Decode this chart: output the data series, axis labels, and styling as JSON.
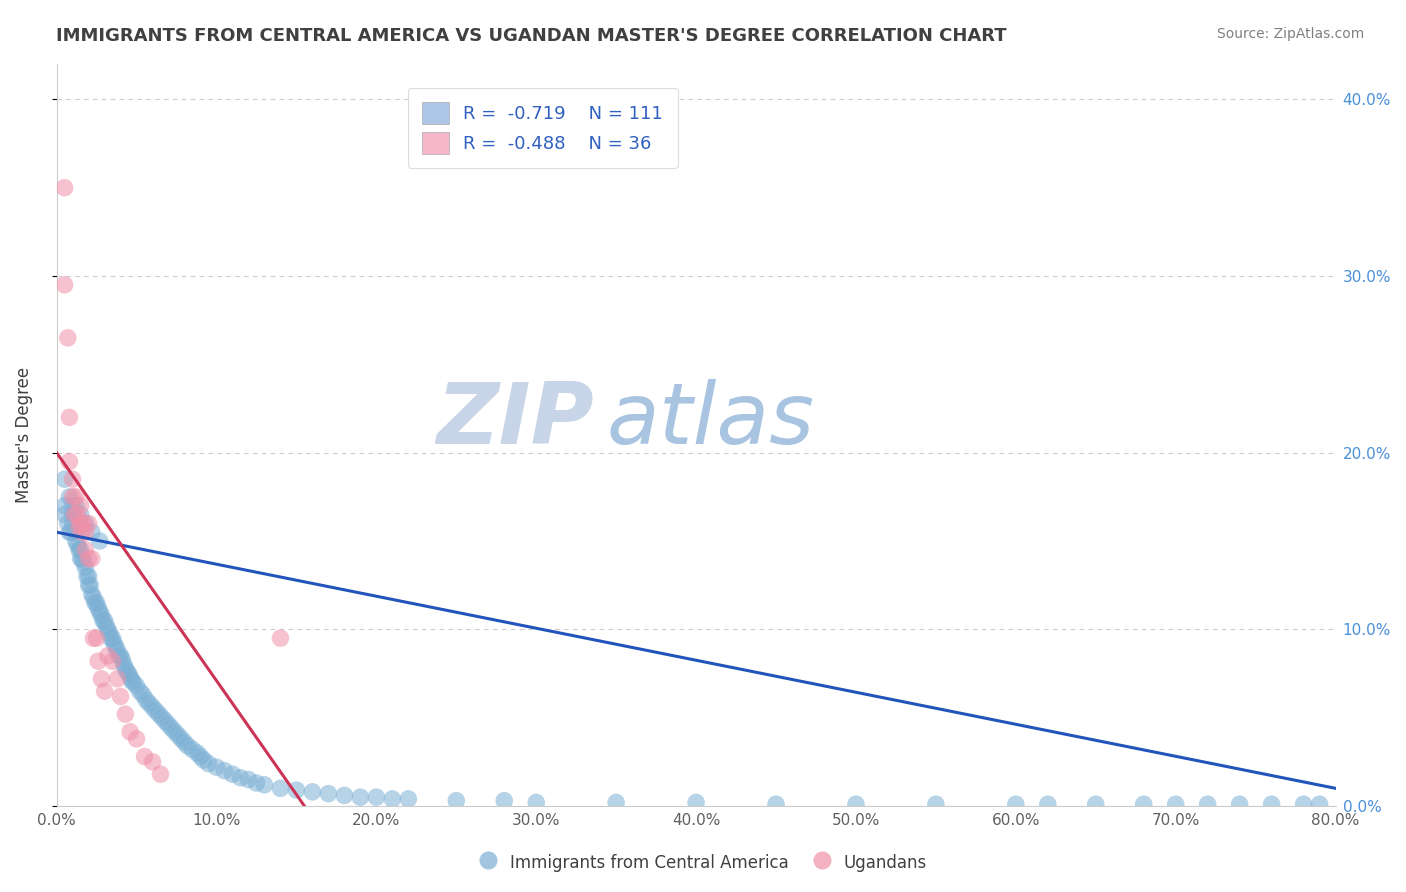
{
  "title": "IMMIGRANTS FROM CENTRAL AMERICA VS UGANDAN MASTER'S DEGREE CORRELATION CHART",
  "source": "Source: ZipAtlas.com",
  "ylabel": "Master's Degree",
  "watermark_zip": "ZIP",
  "watermark_atlas": "atlas",
  "xlim": [
    0.0,
    0.8
  ],
  "ylim": [
    0.0,
    0.42
  ],
  "xticks": [
    0.0,
    0.1,
    0.2,
    0.3,
    0.4,
    0.5,
    0.6,
    0.7,
    0.8
  ],
  "yticks": [
    0.0,
    0.1,
    0.2,
    0.3,
    0.4
  ],
  "ytick_labels_right": [
    "0.0%",
    "10.0%",
    "20.0%",
    "30.0%",
    "40.0%"
  ],
  "xtick_labels": [
    "0.0%",
    "10.0%",
    "20.0%",
    "30.0%",
    "40.0%",
    "50.0%",
    "60.0%",
    "70.0%",
    "80.0%"
  ],
  "legend_label_blue": "R =  -0.719    N = 111",
  "legend_label_pink": "R =  -0.488    N = 36",
  "legend_color_blue": "#aec6e8",
  "legend_color_pink": "#f4b8c8",
  "blue_color": "#7bafd4",
  "pink_color": "#f090a8",
  "blue_line_color": "#2255bb",
  "pink_line_color": "#cc3355",
  "grid_color": "#cccccc",
  "background_color": "#ffffff",
  "title_color": "#404040",
  "source_color": "#808080",
  "watermark_zip_color": "#c8d4e8",
  "watermark_atlas_color": "#a8c4e0",
  "blue_scatter_x": [
    0.005,
    0.005,
    0.007,
    0.008,
    0.009,
    0.01,
    0.01,
    0.01,
    0.012,
    0.012,
    0.013,
    0.014,
    0.015,
    0.015,
    0.016,
    0.017,
    0.018,
    0.019,
    0.02,
    0.02,
    0.021,
    0.022,
    0.023,
    0.024,
    0.025,
    0.026,
    0.027,
    0.028,
    0.029,
    0.03,
    0.031,
    0.032,
    0.033,
    0.034,
    0.035,
    0.036,
    0.037,
    0.038,
    0.039,
    0.04,
    0.041,
    0.042,
    0.043,
    0.044,
    0.045,
    0.046,
    0.047,
    0.048,
    0.05,
    0.052,
    0.054,
    0.056,
    0.058,
    0.06,
    0.062,
    0.064,
    0.066,
    0.068,
    0.07,
    0.072,
    0.074,
    0.076,
    0.078,
    0.08,
    0.082,
    0.085,
    0.088,
    0.09,
    0.092,
    0.095,
    0.1,
    0.105,
    0.11,
    0.115,
    0.12,
    0.125,
    0.13,
    0.14,
    0.15,
    0.16,
    0.17,
    0.18,
    0.19,
    0.2,
    0.21,
    0.22,
    0.25,
    0.28,
    0.3,
    0.35,
    0.4,
    0.45,
    0.5,
    0.55,
    0.6,
    0.62,
    0.65,
    0.68,
    0.7,
    0.72,
    0.74,
    0.76,
    0.78,
    0.79,
    0.005,
    0.008,
    0.012,
    0.015,
    0.018,
    0.022,
    0.027
  ],
  "blue_scatter_y": [
    0.165,
    0.17,
    0.16,
    0.155,
    0.155,
    0.17,
    0.165,
    0.16,
    0.155,
    0.15,
    0.148,
    0.145,
    0.145,
    0.14,
    0.14,
    0.138,
    0.135,
    0.13,
    0.13,
    0.125,
    0.125,
    0.12,
    0.118,
    0.115,
    0.115,
    0.112,
    0.11,
    0.108,
    0.105,
    0.105,
    0.102,
    0.1,
    0.098,
    0.095,
    0.095,
    0.092,
    0.09,
    0.088,
    0.085,
    0.085,
    0.083,
    0.08,
    0.078,
    0.076,
    0.075,
    0.073,
    0.071,
    0.07,
    0.068,
    0.065,
    0.063,
    0.06,
    0.058,
    0.056,
    0.054,
    0.052,
    0.05,
    0.048,
    0.046,
    0.044,
    0.042,
    0.04,
    0.038,
    0.036,
    0.034,
    0.032,
    0.03,
    0.028,
    0.026,
    0.024,
    0.022,
    0.02,
    0.018,
    0.016,
    0.015,
    0.013,
    0.012,
    0.01,
    0.009,
    0.008,
    0.007,
    0.006,
    0.005,
    0.005,
    0.004,
    0.004,
    0.003,
    0.003,
    0.002,
    0.002,
    0.002,
    0.001,
    0.001,
    0.001,
    0.001,
    0.001,
    0.001,
    0.001,
    0.001,
    0.001,
    0.001,
    0.001,
    0.001,
    0.001,
    0.185,
    0.175,
    0.17,
    0.165,
    0.16,
    0.155,
    0.15
  ],
  "pink_scatter_x": [
    0.005,
    0.005,
    0.007,
    0.008,
    0.008,
    0.01,
    0.01,
    0.011,
    0.012,
    0.013,
    0.014,
    0.015,
    0.015,
    0.016,
    0.017,
    0.018,
    0.018,
    0.02,
    0.02,
    0.022,
    0.023,
    0.025,
    0.026,
    0.028,
    0.03,
    0.032,
    0.035,
    0.038,
    0.04,
    0.043,
    0.046,
    0.05,
    0.055,
    0.06,
    0.065,
    0.14
  ],
  "pink_scatter_y": [
    0.35,
    0.295,
    0.265,
    0.22,
    0.195,
    0.185,
    0.175,
    0.165,
    0.175,
    0.165,
    0.158,
    0.17,
    0.16,
    0.155,
    0.16,
    0.155,
    0.145,
    0.16,
    0.14,
    0.14,
    0.095,
    0.095,
    0.082,
    0.072,
    0.065,
    0.085,
    0.082,
    0.072,
    0.062,
    0.052,
    0.042,
    0.038,
    0.028,
    0.025,
    0.018,
    0.095
  ],
  "blue_line_x": [
    0.0,
    0.8
  ],
  "blue_line_y": [
    0.155,
    0.01
  ],
  "pink_line_x": [
    0.0,
    0.155
  ],
  "pink_line_y": [
    0.2,
    0.0
  ]
}
